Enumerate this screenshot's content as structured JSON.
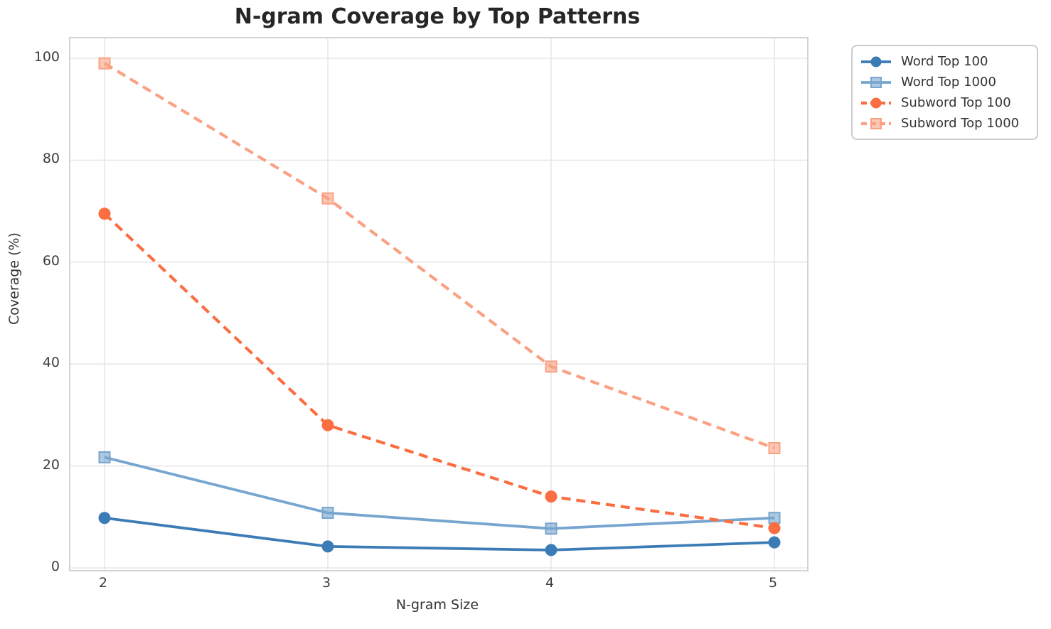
{
  "figure": {
    "title": "N-gram Coverage by Top Patterns",
    "xlabel": "N-gram Size",
    "ylabel": "Coverage (%)"
  },
  "chart_data": {
    "type": "line",
    "title": "N-gram Coverage by Top Patterns",
    "xlabel": "N-gram Size",
    "ylabel": "Coverage (%)",
    "x": [
      2,
      3,
      4,
      5
    ],
    "x_tick_labels": [
      "2",
      "3",
      "4",
      "5"
    ],
    "y_ticks": [
      0,
      20,
      40,
      60,
      80,
      100
    ],
    "y_tick_labels": [
      "0",
      "20",
      "40",
      "60",
      "80",
      "100"
    ],
    "xlim": [
      1.85,
      5.15
    ],
    "ylim": [
      -0.5,
      104.3
    ],
    "grid": true,
    "legend_position": "outside-upper-right",
    "series": [
      {
        "name": "Word Top 100",
        "values": [
          9.8,
          4.2,
          3.5,
          5.0
        ],
        "color": "#3c7cb6",
        "line_style": "solid",
        "marker": "circle"
      },
      {
        "name": "Word Top 1000",
        "values": [
          21.7,
          10.8,
          7.7,
          9.8
        ],
        "color": "#76a5cf",
        "line_style": "solid",
        "marker": "square"
      },
      {
        "name": "Subword Top 100",
        "values": [
          69.5,
          28.0,
          14.0,
          7.8
        ],
        "color": "#fb6e42",
        "line_style": "dashed",
        "marker": "circle"
      },
      {
        "name": "Subword Top 1000",
        "values": [
          99.0,
          72.5,
          39.5,
          23.5
        ],
        "color": "#fba183",
        "line_style": "dashed",
        "marker": "square"
      }
    ],
    "colors": {
      "grid": "#e7e7e7",
      "spine": "#d4d4d4",
      "title_text": "#262626",
      "axis_text": "#333333",
      "tick_text": "#3d3d3d"
    }
  }
}
